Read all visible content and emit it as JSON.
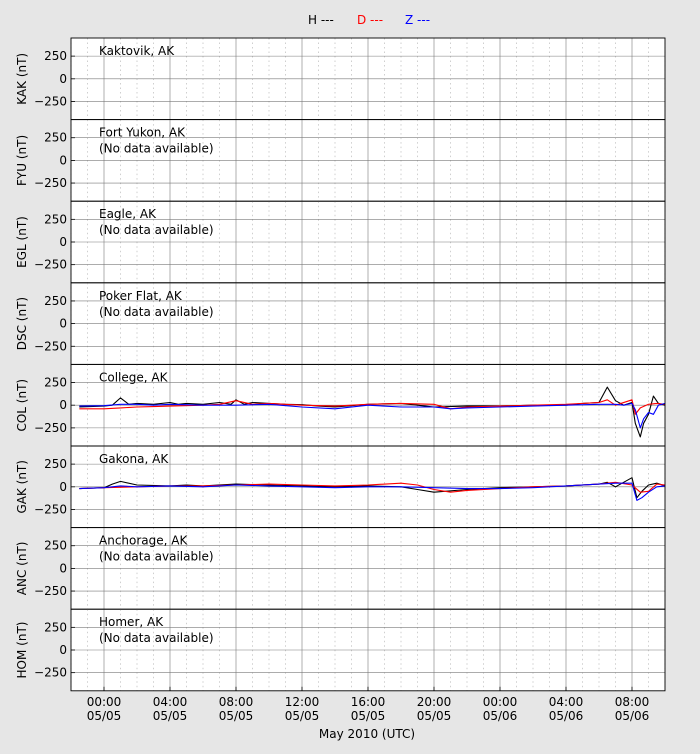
{
  "legend": {
    "items": [
      {
        "label": "H ---",
        "color": "#000000"
      },
      {
        "label": "D ---",
        "color": "#ff0000"
      },
      {
        "label": "Z ---",
        "color": "#0000ff"
      }
    ]
  },
  "xaxis": {
    "title": "May 2010 (UTC)",
    "ticks": [
      {
        "time": "00:00",
        "date": "05/05",
        "hour": 0
      },
      {
        "time": "04:00",
        "date": "05/05",
        "hour": 4
      },
      {
        "time": "08:00",
        "date": "05/05",
        "hour": 8
      },
      {
        "time": "12:00",
        "date": "05/05",
        "hour": 12
      },
      {
        "time": "16:00",
        "date": "05/05",
        "hour": 16
      },
      {
        "time": "20:00",
        "date": "05/05",
        "hour": 20
      },
      {
        "time": "00:00",
        "date": "05/06",
        "hour": 24
      },
      {
        "time": "04:00",
        "date": "05/06",
        "hour": 28
      },
      {
        "time": "08:00",
        "date": "05/06",
        "hour": 32
      }
    ],
    "range_hours": [
      -2,
      34
    ]
  },
  "chart_data": [
    {
      "type": "line",
      "station": "KAK",
      "ylabel": "KAK (nT)",
      "annotation": "Kaktovik, AK",
      "note": "",
      "ylim": [
        -450,
        450
      ],
      "yticks": [
        250,
        0,
        -250
      ],
      "series": []
    },
    {
      "type": "line",
      "station": "FYU",
      "ylabel": "FYU (nT)",
      "annotation": "Fort Yukon, AK",
      "note": "(No data available)",
      "ylim": [
        -450,
        450
      ],
      "yticks": [
        250,
        0,
        -250
      ],
      "series": []
    },
    {
      "type": "line",
      "station": "EGL",
      "ylabel": "EGL (nT)",
      "annotation": "Eagle, AK",
      "note": "(No data available)",
      "ylim": [
        -450,
        450
      ],
      "yticks": [
        250,
        0,
        -250
      ],
      "series": []
    },
    {
      "type": "line",
      "station": "DSC",
      "ylabel": "DSC (nT)",
      "annotation": "Poker Flat, AK",
      "note": "(No data available)",
      "ylim": [
        -450,
        450
      ],
      "yticks": [
        250,
        0,
        -250
      ],
      "series": []
    },
    {
      "type": "line",
      "station": "COL",
      "ylabel": "COL (nT)",
      "annotation": "College, AK",
      "note": "",
      "ylim": [
        -450,
        450
      ],
      "yticks": [
        250,
        0,
        -250
      ],
      "series": [
        {
          "name": "H",
          "color": "#000000",
          "x": [
            -1.5,
            0,
            0.5,
            1,
            1.5,
            2,
            3,
            4,
            4.5,
            5,
            6,
            7,
            7.7,
            8,
            8.5,
            9,
            10,
            11,
            12,
            13,
            14,
            16,
            18,
            19,
            20,
            22,
            24,
            26,
            28,
            29,
            30,
            30.5,
            31,
            31.5,
            32,
            32.2,
            32.5,
            32.7,
            33,
            33.3,
            33.6,
            34
          ],
          "y": [
            -20,
            -10,
            0,
            80,
            10,
            20,
            10,
            30,
            10,
            20,
            10,
            30,
            10,
            60,
            10,
            30,
            20,
            10,
            5,
            -10,
            -20,
            10,
            20,
            0,
            -20,
            -10,
            -10,
            0,
            0,
            20,
            30,
            200,
            50,
            0,
            30,
            -200,
            -350,
            -200,
            -100,
            100,
            20,
            0
          ]
        },
        {
          "name": "D",
          "color": "#ff0000",
          "x": [
            -1.5,
            0,
            1,
            2,
            3,
            4,
            6,
            7,
            8,
            9,
            10,
            12,
            14,
            16,
            18,
            20,
            21,
            22,
            24,
            26,
            28,
            30,
            30.5,
            31,
            32,
            32.2,
            32.5,
            33,
            33.5,
            34
          ],
          "y": [
            -40,
            -40,
            -30,
            -20,
            -15,
            -10,
            0,
            10,
            50,
            10,
            20,
            0,
            -10,
            10,
            20,
            10,
            -40,
            -20,
            -10,
            0,
            10,
            30,
            60,
            0,
            60,
            -100,
            -30,
            10,
            20,
            10
          ]
        },
        {
          "name": "Z",
          "color": "#0000ff",
          "x": [
            -1.5,
            0,
            1,
            2,
            3,
            4,
            6,
            8,
            10,
            12,
            14,
            16,
            18,
            20,
            21,
            22,
            24,
            26,
            28,
            30,
            31,
            31.5,
            32,
            32.2,
            32.5,
            32.7,
            33,
            33.3,
            33.6,
            34
          ],
          "y": [
            -10,
            -5,
            10,
            10,
            0,
            10,
            0,
            0,
            10,
            -20,
            -40,
            0,
            -20,
            -20,
            -40,
            -30,
            -20,
            -10,
            0,
            10,
            10,
            0,
            20,
            -50,
            -250,
            -150,
            -80,
            -100,
            0,
            20
          ]
        }
      ]
    },
    {
      "type": "line",
      "station": "GAK",
      "ylabel": "GAK (nT)",
      "annotation": "Gakona, AK",
      "note": "",
      "ylim": [
        -450,
        450
      ],
      "yticks": [
        250,
        0,
        -250
      ],
      "series": [
        {
          "name": "H",
          "color": "#000000",
          "x": [
            -1.5,
            0,
            0.5,
            1,
            2,
            4,
            5,
            6,
            8,
            10,
            12,
            14,
            16,
            18,
            19,
            20,
            22,
            24,
            26,
            28,
            30,
            30.5,
            31,
            32,
            32.3,
            32.6,
            33,
            33.5,
            34
          ],
          "y": [
            -20,
            -10,
            30,
            60,
            20,
            10,
            20,
            10,
            30,
            20,
            10,
            0,
            10,
            0,
            -30,
            -60,
            -30,
            -10,
            0,
            10,
            30,
            50,
            0,
            100,
            -120,
            -50,
            20,
            40,
            10
          ]
        },
        {
          "name": "D",
          "color": "#ff0000",
          "x": [
            -1.5,
            0,
            2,
            4,
            6,
            8,
            10,
            12,
            14,
            16,
            18,
            19,
            20,
            21,
            22,
            24,
            26,
            28,
            30,
            31,
            32,
            32.5,
            33,
            33.5,
            34
          ],
          "y": [
            -20,
            -10,
            0,
            10,
            10,
            20,
            30,
            20,
            10,
            20,
            40,
            20,
            -30,
            -60,
            -40,
            -20,
            0,
            10,
            30,
            50,
            20,
            -60,
            -50,
            30,
            20
          ]
        },
        {
          "name": "Z",
          "color": "#0000ff",
          "x": [
            -1.5,
            0,
            1,
            2,
            4,
            6,
            8,
            10,
            12,
            14,
            16,
            18,
            20,
            22,
            24,
            26,
            28,
            30,
            31,
            32,
            32.3,
            32.6,
            33,
            33.5,
            34
          ],
          "y": [
            -20,
            -10,
            10,
            0,
            10,
            0,
            20,
            10,
            0,
            -10,
            0,
            0,
            -10,
            -20,
            -20,
            -10,
            10,
            30,
            40,
            40,
            -150,
            -120,
            -60,
            0,
            10
          ]
        }
      ]
    },
    {
      "type": "line",
      "station": "ANC",
      "ylabel": "ANC (nT)",
      "annotation": "Anchorage, AK",
      "note": "(No data available)",
      "ylim": [
        -450,
        450
      ],
      "yticks": [
        250,
        0,
        -250
      ],
      "series": []
    },
    {
      "type": "line",
      "station": "HOM",
      "ylabel": "HOM (nT)",
      "annotation": "Homer, AK",
      "note": "(No data available)",
      "ylim": [
        -450,
        450
      ],
      "yticks": [
        250,
        0,
        -250
      ],
      "series": []
    }
  ]
}
